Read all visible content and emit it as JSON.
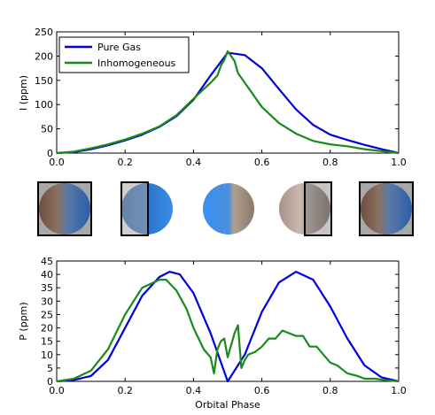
{
  "chart_data": [
    {
      "type": "line",
      "title": "",
      "xlabel": "",
      "ylabel": "I (ppm)",
      "xlim": [
        0.0,
        1.0
      ],
      "ylim": [
        0,
        250
      ],
      "xticks": [
        "0.0",
        "0.2",
        "0.4",
        "0.6",
        "0.8",
        "1.0"
      ],
      "yticks": [
        "0",
        "50",
        "100",
        "150",
        "200",
        "250"
      ],
      "legend_position": "top-left",
      "grid": false,
      "series": [
        {
          "name": "Pure Gas",
          "color": "#0000dd",
          "x": [
            0,
            0.05,
            0.1,
            0.15,
            0.2,
            0.25,
            0.3,
            0.35,
            0.4,
            0.45,
            0.5,
            0.55,
            0.6,
            0.65,
            0.7,
            0.75,
            0.8,
            0.85,
            0.9,
            0.95,
            1.0
          ],
          "y": [
            0,
            2,
            8,
            16,
            26,
            38,
            54,
            76,
            110,
            160,
            207,
            202,
            175,
            132,
            90,
            58,
            38,
            27,
            17,
            8,
            0
          ]
        },
        {
          "name": "Inhomogeneous",
          "color": "#1a8a1a",
          "x": [
            0,
            0.05,
            0.1,
            0.15,
            0.2,
            0.25,
            0.3,
            0.35,
            0.4,
            0.43,
            0.45,
            0.47,
            0.48,
            0.49,
            0.5,
            0.51,
            0.52,
            0.53,
            0.55,
            0.6,
            0.65,
            0.7,
            0.75,
            0.8,
            0.85,
            0.9,
            0.95,
            1.0
          ],
          "y": [
            0,
            3,
            10,
            18,
            28,
            40,
            55,
            78,
            112,
            132,
            145,
            160,
            180,
            192,
            210,
            200,
            190,
            165,
            145,
            95,
            62,
            40,
            25,
            18,
            14,
            8,
            4,
            0
          ]
        }
      ]
    },
    {
      "type": "line",
      "title": "",
      "xlabel": "Orbital Phase",
      "ylabel": "P (ppm)",
      "xlim": [
        0.0,
        1.0
      ],
      "ylim": [
        0,
        45
      ],
      "xticks": [
        "0.0",
        "0.2",
        "0.4",
        "0.6",
        "0.8",
        "1.0"
      ],
      "yticks": [
        "0",
        "5",
        "10",
        "15",
        "20",
        "25",
        "30",
        "35",
        "40",
        "45"
      ],
      "grid": false,
      "series": [
        {
          "color": "#0000dd",
          "x": [
            0,
            0.05,
            0.1,
            0.15,
            0.2,
            0.25,
            0.3,
            0.33,
            0.36,
            0.4,
            0.45,
            0.5,
            0.55,
            0.6,
            0.65,
            0.7,
            0.75,
            0.8,
            0.85,
            0.9,
            0.95,
            1.0
          ],
          "y": [
            0,
            0.5,
            2,
            8,
            20,
            32,
            39,
            41,
            40,
            33,
            18,
            0,
            10,
            26,
            37,
            41,
            38,
            28,
            16,
            6,
            1.5,
            0
          ]
        },
        {
          "color": "#1a8a1a",
          "x": [
            0,
            0.05,
            0.1,
            0.15,
            0.2,
            0.25,
            0.3,
            0.32,
            0.35,
            0.38,
            0.4,
            0.43,
            0.45,
            0.46,
            0.47,
            0.48,
            0.49,
            0.5,
            0.52,
            0.53,
            0.54,
            0.55,
            0.56,
            0.58,
            0.6,
            0.62,
            0.64,
            0.66,
            0.68,
            0.7,
            0.72,
            0.74,
            0.76,
            0.78,
            0.8,
            0.82,
            0.85,
            0.88,
            0.9,
            0.93,
            0.96,
            1.0
          ],
          "y": [
            0,
            1,
            4,
            12,
            25,
            35,
            38,
            38,
            34,
            27,
            20,
            12,
            9,
            3,
            12,
            15,
            16,
            9,
            18,
            21,
            5,
            8,
            10,
            11,
            13,
            16,
            16,
            19,
            18,
            17,
            17,
            13,
            13,
            10,
            7,
            6,
            3,
            2,
            1,
            1,
            0.5,
            0
          ]
        }
      ]
    }
  ],
  "legend": {
    "items": [
      {
        "label": "Pure Gas",
        "color": "#0000dd"
      },
      {
        "label": "Inhomogeneous",
        "color": "#1a8a1a"
      }
    ]
  },
  "planet_strip": {
    "discs": [
      {
        "phase": 0.0,
        "visible_fraction": 1.0,
        "left_color": "#7a5a4a",
        "right_color": "#3c6eb4",
        "frame": "full"
      },
      {
        "phase": 0.25,
        "visible_fraction": 0.5,
        "left_color": "#1f5ea8",
        "right_color": "#2a7ad6",
        "frame": "left-half"
      },
      {
        "phase": 0.5,
        "visible_fraction": 0.0,
        "left_color": "#3f8ff0",
        "right_color": "#8a7868",
        "frame": "none"
      },
      {
        "phase": 0.75,
        "visible_fraction": 0.5,
        "left_color": "#b09890",
        "right_color": "#7a6a60",
        "frame": "right-half"
      },
      {
        "phase": 1.0,
        "visible_fraction": 1.0,
        "left_color": "#7a5a4a",
        "right_color": "#3c6eb4",
        "frame": "full"
      }
    ]
  }
}
